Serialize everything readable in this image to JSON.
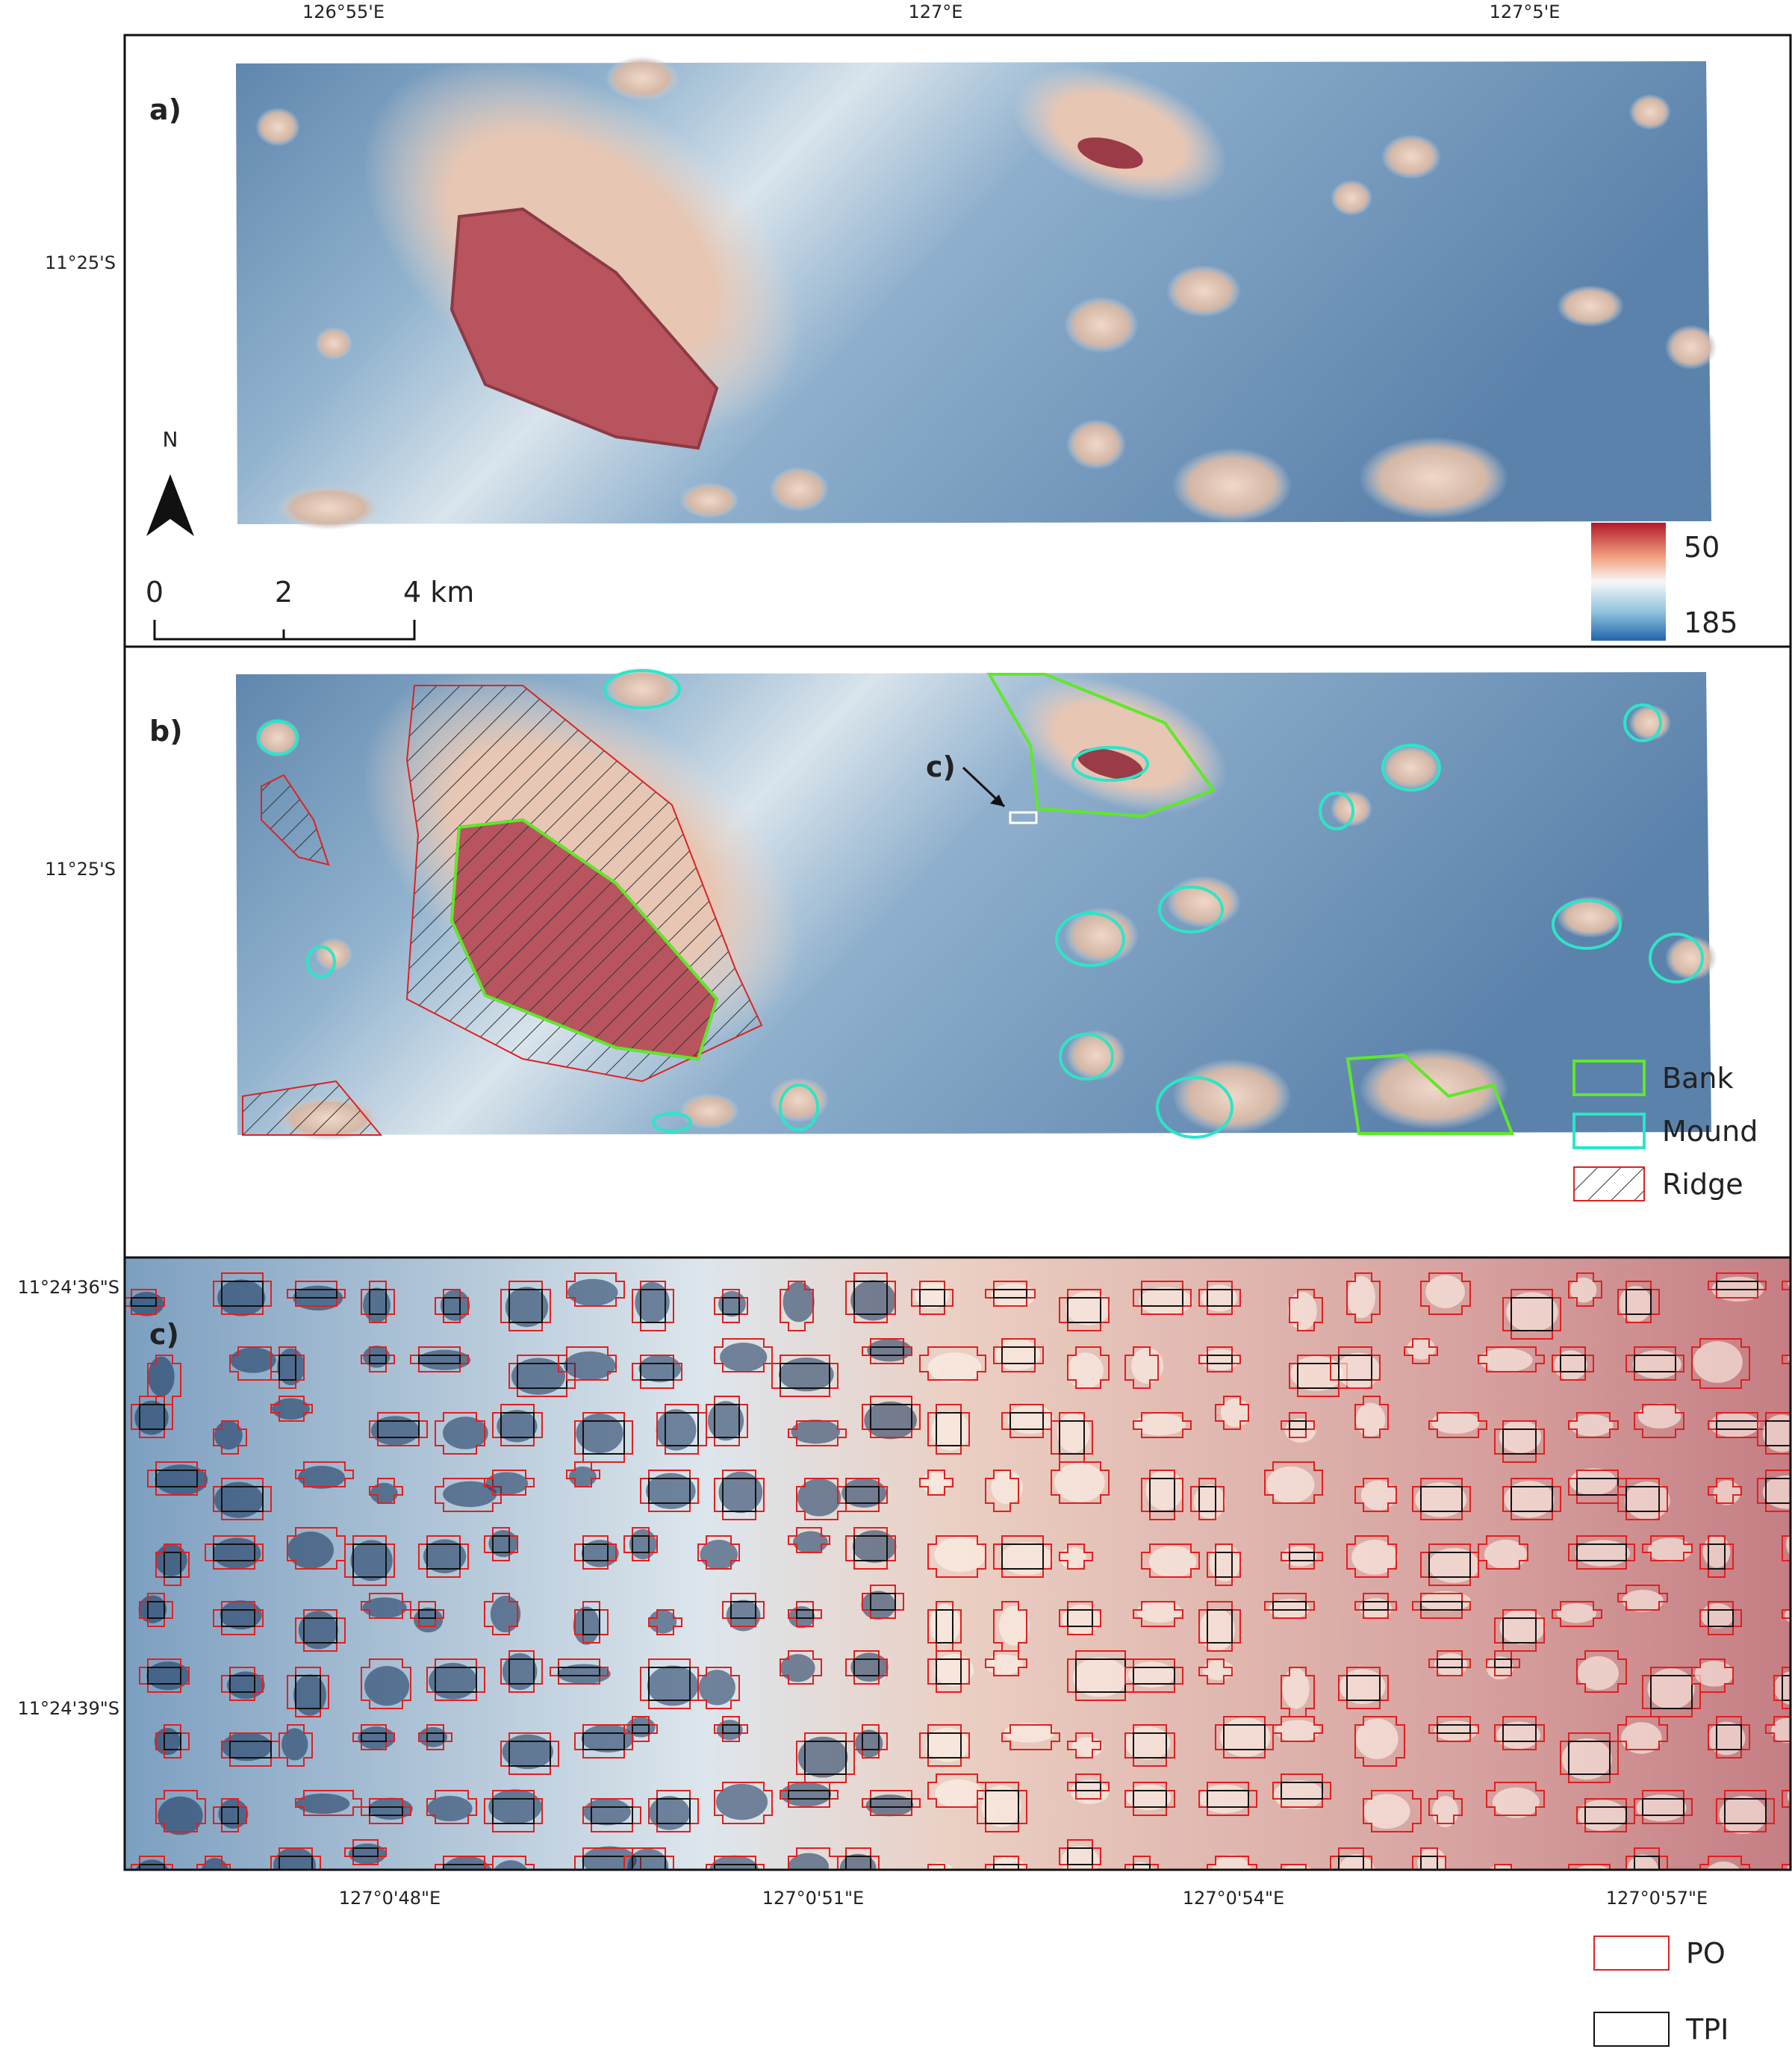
{
  "top_axis_labels": [
    "126°55'E",
    "127°E",
    "127°5'E"
  ],
  "panel_a": {
    "label": "a)",
    "lat_label": "11°25'S",
    "north": "N",
    "scale_bar": [
      "0",
      "2",
      "4 km"
    ],
    "colorbar": [
      50,
      185
    ]
  },
  "panel_b": {
    "label": "b)",
    "lat_label": "11°25'S",
    "annotation": "c)",
    "legend": [
      "Bank",
      "Mound",
      "Ridge"
    ]
  },
  "panel_c": {
    "label": "c)",
    "lat_labels": [
      "11°24'36\"S",
      "11°24'39\"S"
    ],
    "lon_labels": [
      "127°0'48\"E",
      "127°0'51\"E",
      "127°0'54\"E",
      "127°0'57\"E"
    ],
    "legend": [
      "PO",
      "TPI"
    ]
  }
}
